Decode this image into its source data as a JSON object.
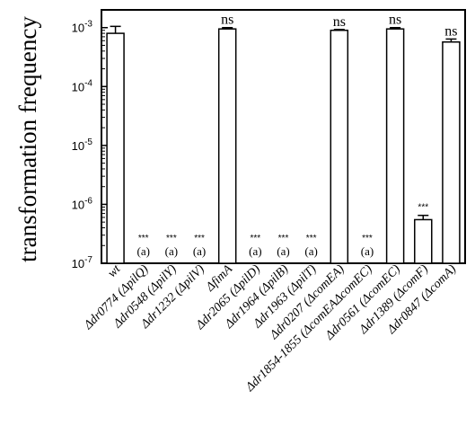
{
  "chart_data": {
    "type": "bar",
    "ylabel": "transformation frequency",
    "yscale": "log",
    "ylim": [
      1e-07,
      0.002
    ],
    "yticks": [
      {
        "value": 1e-07,
        "label": "10-7"
      },
      {
        "value": 1e-06,
        "label": "10-6"
      },
      {
        "value": 1e-05,
        "label": "10-5"
      },
      {
        "value": 0.0001,
        "label": "10-4"
      },
      {
        "value": 0.001,
        "label": "10-3"
      }
    ],
    "categories": [
      "wt",
      "Δdr0774 (ΔpilQ)",
      "Δdr0548 (ΔpilY)",
      "Δdr1232 (ΔpilV)",
      "ΔfimA",
      "Δdr2065 (ΔpilD)",
      "Δdr1964 (ΔpilB)",
      "Δdr1963 (ΔpilT)",
      "Δdr0207 (ΔcomEA)",
      "Δdr1854-1855 (ΔcomEAΔcomEC)",
      "Δdr0561 (ΔcomEC)",
      "Δdr1389 (ΔcomF)",
      "Δdr0847 (ΔcomA)"
    ],
    "values": [
      0.0008,
      null,
      null,
      null,
      0.00095,
      null,
      null,
      null,
      0.0009,
      null,
      0.00095,
      5.5e-07,
      0.00057
    ],
    "errors": [
      0.00025,
      null,
      null,
      null,
      5e-05,
      null,
      null,
      null,
      3e-05,
      null,
      5e-05,
      1e-07,
      7e-05
    ],
    "significance": [
      "",
      "***",
      "***",
      "***",
      "ns",
      "***",
      "***",
      "***",
      "ns",
      "***",
      "ns",
      "***",
      "ns"
    ],
    "below_detection_marker": "(a)",
    "below_detection": [
      false,
      true,
      true,
      true,
      false,
      true,
      true,
      true,
      false,
      true,
      false,
      false,
      false
    ],
    "grid": false,
    "legend": "none"
  }
}
